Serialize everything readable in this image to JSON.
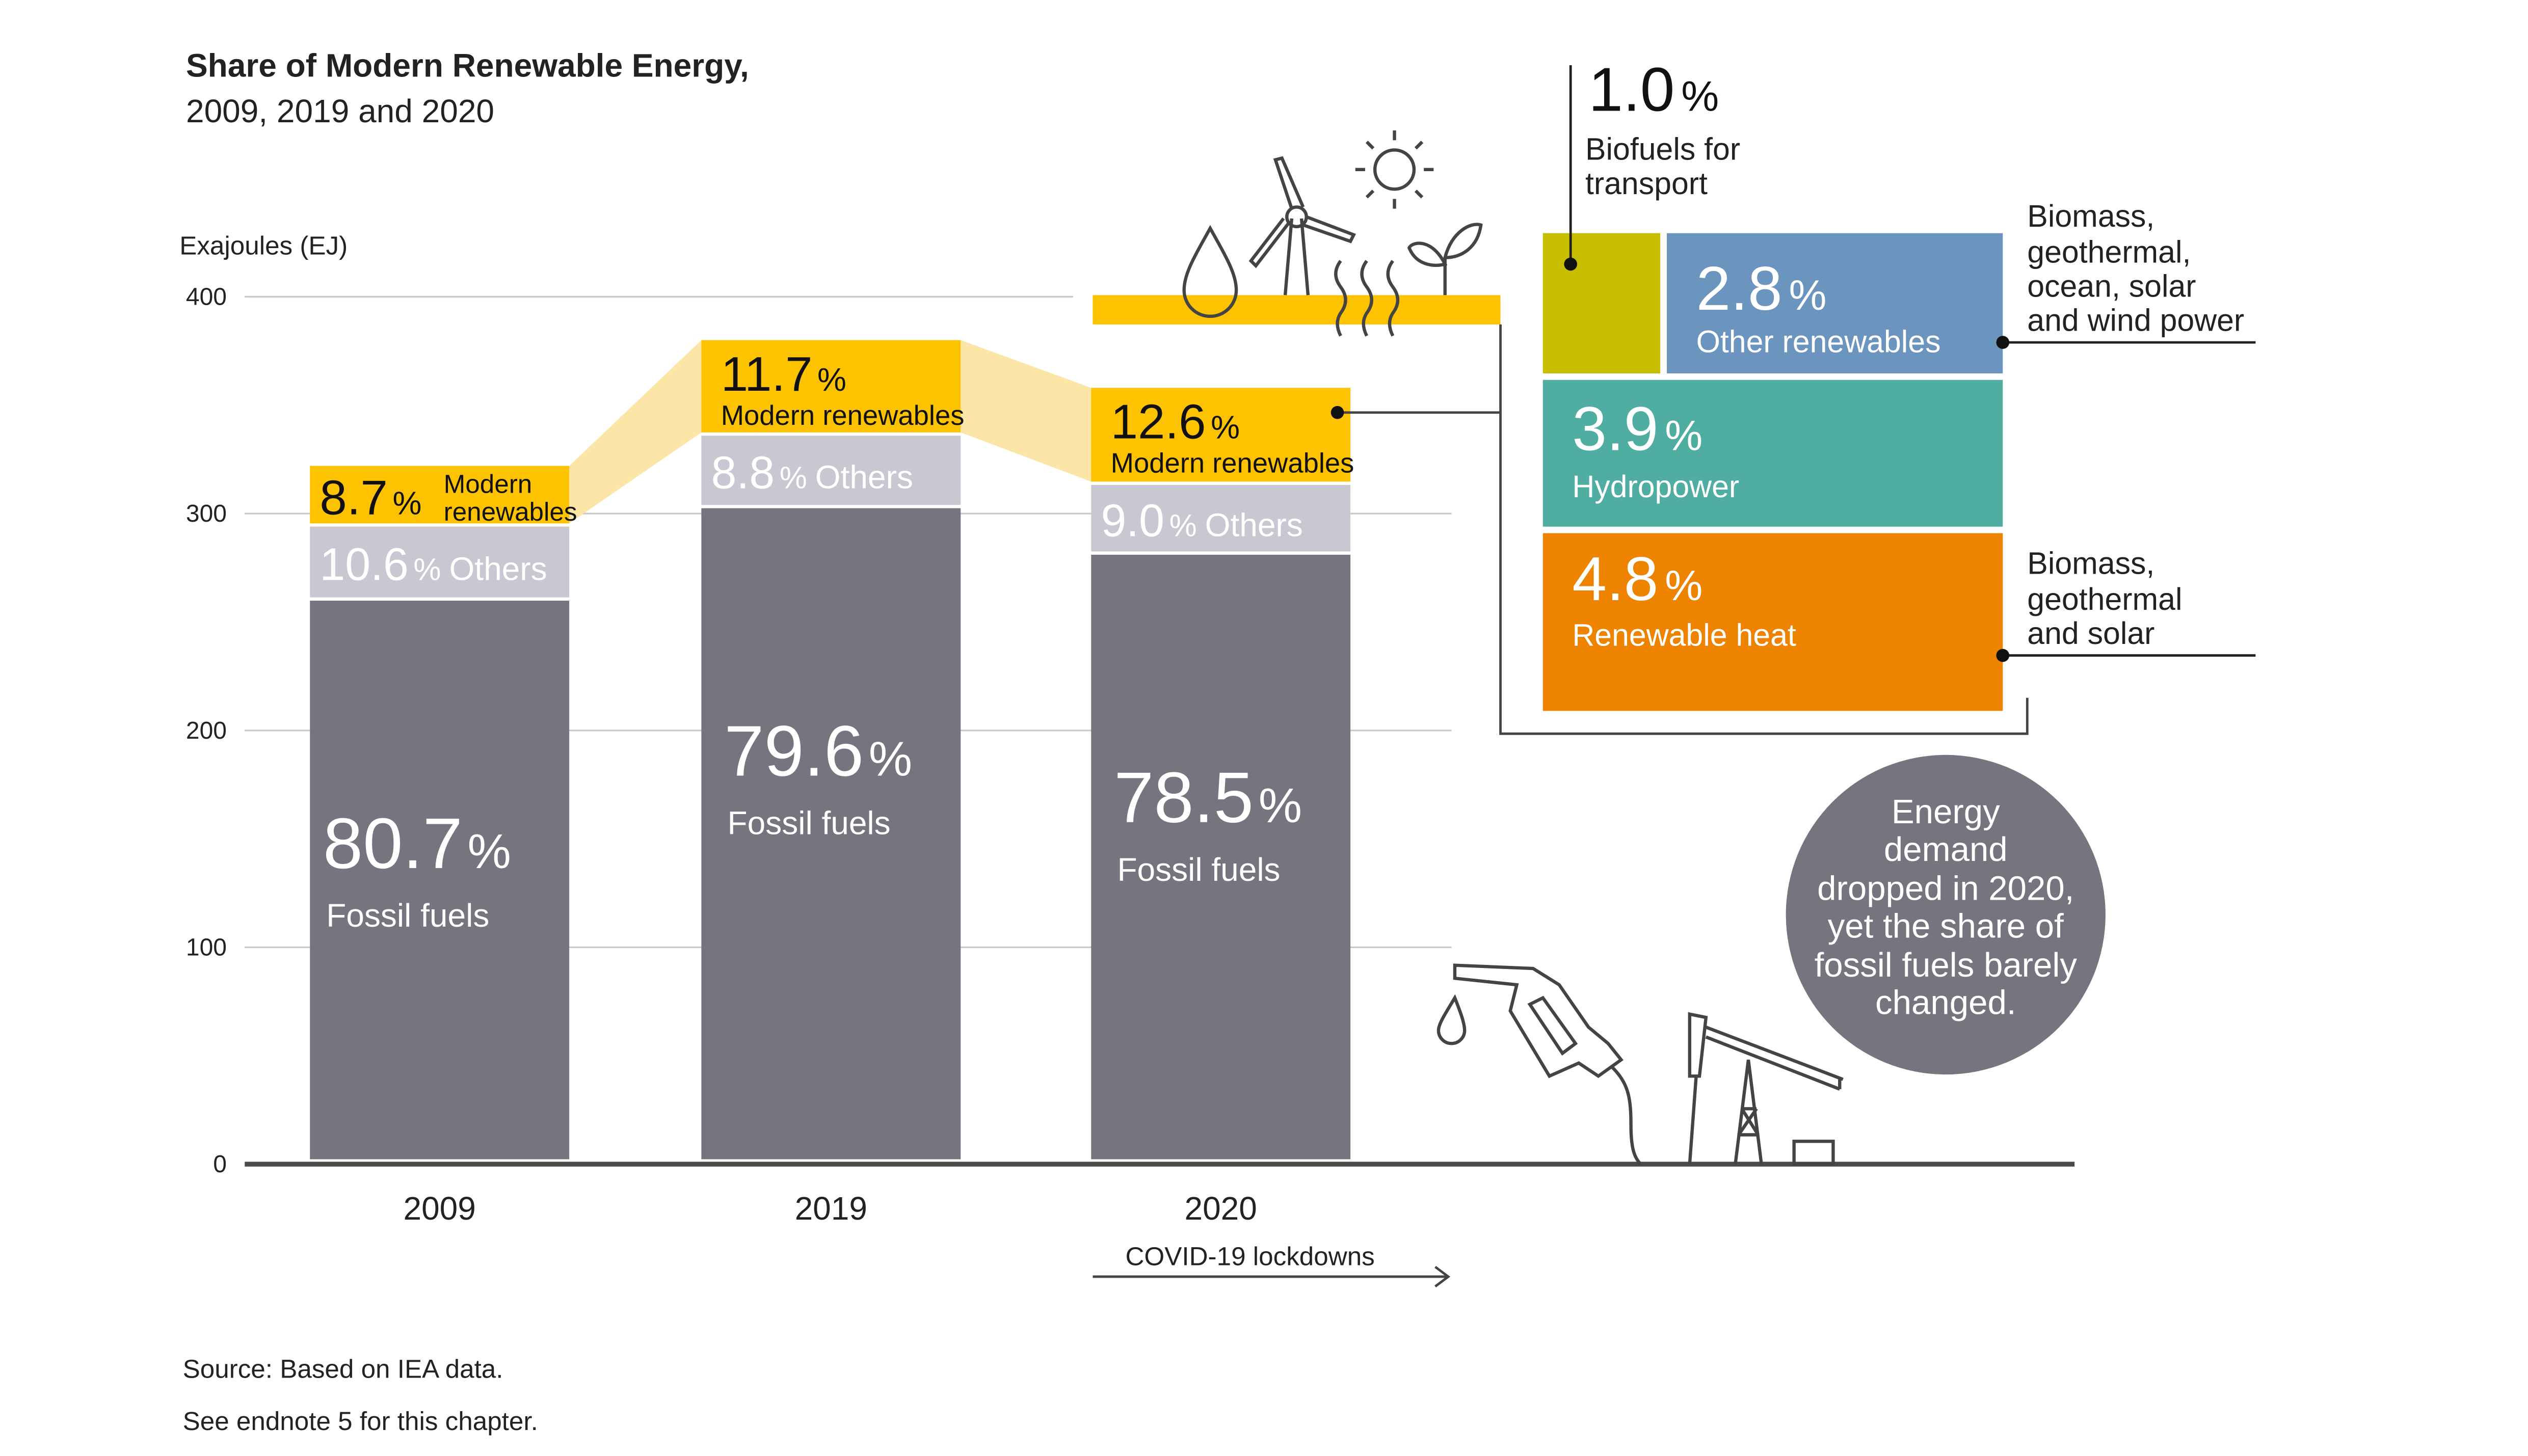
{
  "header": {
    "title": "Share of Modern Renewable Energy,",
    "subtitle": "2009, 2019 and 2020"
  },
  "colors": {
    "fossil": "#76747e",
    "others": "#c9c8d2",
    "modern": "#fdc200",
    "connector": "#fbe6a8",
    "grid": "#c8c8c8",
    "axis": "#4a4a4a",
    "biofuels": "#c8be00",
    "other_renewables": "#6b94bf",
    "hydropower": "#4fada1",
    "renewable_heat": "#ee8300",
    "callout": "#76747e",
    "text": "#222222"
  },
  "chart_data": {
    "type": "bar",
    "stacked": true,
    "ylabel": "Exajoules (EJ)",
    "ylim": [
      0,
      400
    ],
    "yticks": [
      0,
      100,
      200,
      300,
      400
    ],
    "grid": true,
    "categories": [
      "2009",
      "2019",
      "2020"
    ],
    "totals_ej": [
      322,
      380,
      358
    ],
    "series": [
      {
        "name": "Fossil fuels",
        "values": [
          80.7,
          79.6,
          78.5
        ],
        "unit": "%"
      },
      {
        "name": "Others",
        "values": [
          10.6,
          8.8,
          9.0
        ],
        "unit": "%"
      },
      {
        "name": "Modern renewables",
        "values": [
          8.7,
          11.7,
          12.6
        ],
        "unit": "%"
      }
    ],
    "bar_labels": [
      {
        "fossil": "80.7",
        "fossil_name": "Fossil fuels",
        "others": "10.6",
        "others_name": "Others",
        "modern": "8.7",
        "modern_name_1": "Modern",
        "modern_name_2": "renewables"
      },
      {
        "fossil": "79.6",
        "fossil_name": "Fossil fuels",
        "others": "8.8",
        "others_name": "Others",
        "modern": "11.7",
        "modern_name": "Modern renewables"
      },
      {
        "fossil": "78.5",
        "fossil_name": "Fossil fuels",
        "others": "9.0",
        "others_name": "Others",
        "modern": "12.6",
        "modern_name": "Modern renewables"
      }
    ],
    "percent_sign": "%",
    "breakdown_2020": [
      {
        "name": "Biofuels for transport",
        "value": 1.0,
        "line1": "Biofuels for",
        "line2": "transport"
      },
      {
        "name": "Other renewables",
        "value": 2.8,
        "note": [
          "Biomass,",
          "geothermal,",
          "ocean, solar",
          "and wind power"
        ]
      },
      {
        "name": "Hydropower",
        "value": 3.9
      },
      {
        "name": "Renewable heat",
        "value": 4.8,
        "note": [
          "Biomass,",
          "geothermal",
          "and solar"
        ]
      }
    ],
    "breakdown_labels": {
      "biofuels": "1.0",
      "other": "2.8",
      "hydro": "3.9",
      "heat": "4.8"
    },
    "annotation_covid": "COVID-19 lockdowns",
    "callout": [
      "Energy",
      "demand",
      "dropped in 2020,",
      "yet the share of",
      "fossil fuels barely",
      "changed."
    ]
  },
  "footer": {
    "source": "Source: Based on IEA data.",
    "endnote": "See endnote 5 for this chapter."
  }
}
